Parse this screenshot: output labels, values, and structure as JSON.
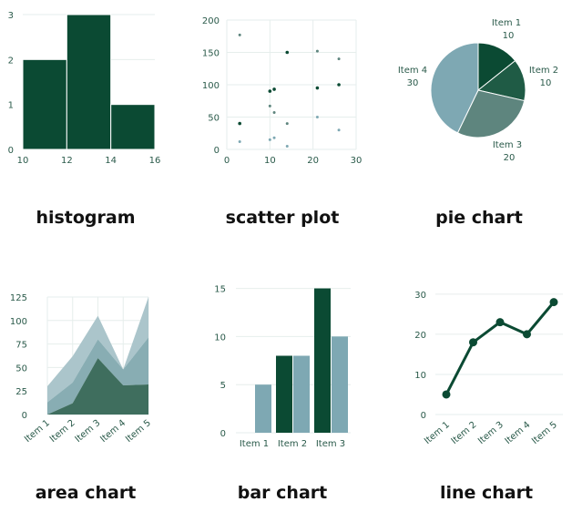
{
  "colors": {
    "dark": "#0b4a33",
    "mid": "#5e857e",
    "light": "#7ea8b3",
    "axis": "#2a5a4a",
    "grid": "#e6eeec"
  },
  "chart_data": [
    {
      "type": "bar",
      "subtype": "histogram",
      "caption": "histogram",
      "bins": [
        [
          10,
          12
        ],
        [
          12,
          14
        ],
        [
          14,
          16
        ]
      ],
      "values": [
        2,
        3,
        1
      ],
      "xticks": [
        "10",
        "12",
        "14",
        "16"
      ],
      "yticks": [
        "0",
        "1",
        "2",
        "3"
      ],
      "xlim": [
        10,
        16
      ],
      "ylim": [
        0,
        3
      ]
    },
    {
      "type": "scatter",
      "caption": "scatter plot",
      "series": [
        {
          "points": [
            [
              3,
              40
            ],
            [
              10,
              90
            ],
            [
              11,
              93
            ],
            [
              14,
              150
            ],
            [
              21,
              95
            ],
            [
              26,
              100
            ]
          ]
        },
        {
          "points": [
            [
              3,
              177
            ],
            [
              10,
              67
            ],
            [
              11,
              57
            ],
            [
              14,
              40
            ],
            [
              21,
              152
            ],
            [
              26,
              140
            ]
          ]
        },
        {
          "points": [
            [
              3,
              12
            ],
            [
              10,
              15
            ],
            [
              11,
              18
            ],
            [
              14,
              5
            ],
            [
              21,
              50
            ],
            [
              26,
              30
            ]
          ]
        }
      ],
      "xticks": [
        "0",
        "10",
        "20",
        "30"
      ],
      "yticks": [
        "0",
        "50",
        "100",
        "150",
        "200"
      ],
      "xlim": [
        0,
        30
      ],
      "ylim": [
        0,
        200
      ]
    },
    {
      "type": "pie",
      "caption": "pie chart",
      "slices": [
        {
          "label": "Item 1",
          "value": 10
        },
        {
          "label": "Item 2",
          "value": 10
        },
        {
          "label": "Item 3",
          "value": 20
        },
        {
          "label": "Item 4",
          "value": 30
        }
      ]
    },
    {
      "type": "area",
      "stacked": true,
      "caption": "area chart",
      "categories": [
        "Item 1",
        "Item 2",
        "Item 3",
        "Item 4",
        "Item 5"
      ],
      "series": [
        {
          "values": [
            0,
            12,
            60,
            31,
            32
          ]
        },
        {
          "values": [
            13,
            22,
            20,
            17,
            50
          ]
        },
        {
          "values": [
            17,
            28,
            25,
            0,
            43
          ]
        }
      ],
      "yticks": [
        "0",
        "25",
        "50",
        "75",
        "100",
        "125"
      ],
      "ylim": [
        0,
        125
      ]
    },
    {
      "type": "bar",
      "caption": "bar chart",
      "categories": [
        "Item 1",
        "Item 2",
        "Item 3"
      ],
      "series": [
        {
          "values": [
            0,
            8,
            15
          ]
        },
        {
          "values": [
            5,
            8,
            10
          ]
        }
      ],
      "yticks": [
        "0",
        "5",
        "10",
        "15"
      ],
      "ylim": [
        0,
        16
      ]
    },
    {
      "type": "line",
      "caption": "line chart",
      "categories": [
        "Item 1",
        "Item 2",
        "Item 3",
        "Item 4",
        "Item 5"
      ],
      "values": [
        5,
        18,
        23,
        20,
        28
      ],
      "yticks": [
        "0",
        "10",
        "20",
        "30"
      ],
      "ylim": [
        0,
        32
      ]
    }
  ]
}
